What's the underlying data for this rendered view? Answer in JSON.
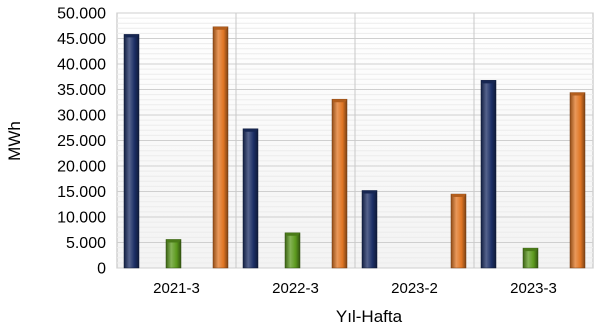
{
  "chart_data": {
    "type": "bar",
    "title": "",
    "xlabel": "Yıl-Hafta",
    "ylabel": "MWh",
    "ylim": [
      0,
      50000
    ],
    "yticks": [
      0,
      5000,
      10000,
      15000,
      20000,
      25000,
      30000,
      35000,
      40000,
      45000,
      50000
    ],
    "ytick_labels": [
      "0",
      "5.000",
      "10.000",
      "15.000",
      "20.000",
      "25.000",
      "30.000",
      "35.000",
      "40.000",
      "45.000",
      "50.000"
    ],
    "grid": true,
    "legend": "none",
    "categories": [
      "2021-3",
      "2022-3",
      "2023-2",
      "2023-3"
    ],
    "series": [
      {
        "color": "#1c2f66",
        "values": [
          45800,
          27300,
          15200,
          36800
        ]
      },
      {
        "color": "#5c9a1e",
        "values": [
          5600,
          6900,
          0,
          3900
        ]
      },
      {
        "color": "#e07624",
        "values": [
          47300,
          33100,
          14500,
          34400
        ]
      }
    ]
  }
}
